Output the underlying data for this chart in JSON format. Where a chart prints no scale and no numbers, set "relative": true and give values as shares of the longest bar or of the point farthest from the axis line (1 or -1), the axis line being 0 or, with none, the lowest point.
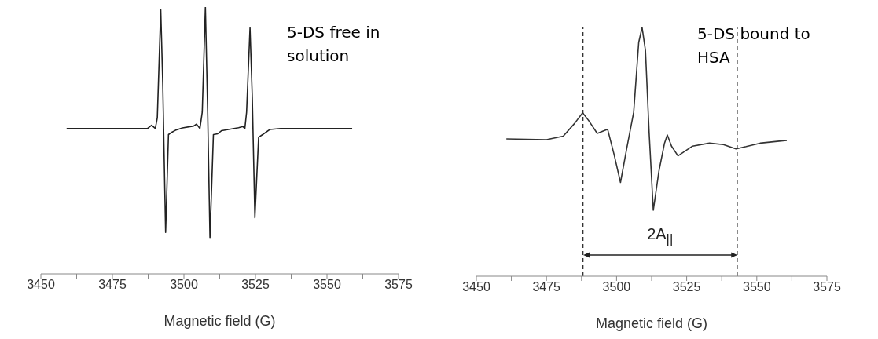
{
  "chart_data": [
    {
      "type": "line",
      "xlabel": "Magnetic field (G)",
      "relative": true,
      "xlim": [
        3450,
        3575
      ],
      "xticks": [
        3450,
        {
          "value": 3462.5,
          "label": null
        },
        3475,
        {
          "value": 3487.5,
          "label": null
        },
        3500,
        {
          "value": 3512.5,
          "label": null
        },
        3525,
        {
          "value": 3537.5,
          "label": null
        },
        3550,
        {
          "value": 3562.5,
          "label": null
        },
        3575
      ],
      "grid": false,
      "legend": false,
      "marker": "none",
      "line_style": "solid",
      "annotations": [
        "5-DS free in solution"
      ],
      "series": [
        {
          "color": "#222222",
          "x": [
            3459,
            3487.3,
            3488.7,
            3490,
            3490.7,
            3491.9,
            3492.6,
            3493.6,
            3494.6,
            3495.8,
            3497,
            3499.5,
            3503.4,
            3504.4,
            3505.6,
            3506.4,
            3507.5,
            3508.3,
            3509.1,
            3510.3,
            3511.8,
            3513.2,
            3519.1,
            3520.6,
            3521.3,
            3521.9,
            3523.1,
            3523.9,
            3524.8,
            3526.1,
            3527.5,
            3530,
            3533.8,
            3558.8
          ],
          "values": [
            0.545,
            0.545,
            0.557,
            0.545,
            0.585,
            0.99,
            0.712,
            0.155,
            0.522,
            0.531,
            0.538,
            0.547,
            0.554,
            0.561,
            0.545,
            0.606,
            1,
            0.606,
            0.136,
            0.522,
            0.525,
            0.537,
            0.548,
            0.552,
            0.545,
            0.606,
            0.922,
            0.659,
            0.21,
            0.512,
            0.522,
            0.541,
            0.545,
            0.545
          ]
        }
      ]
    },
    {
      "type": "line",
      "xlabel": "Magnetic field (G)",
      "relative": true,
      "xlim": [
        3450,
        3575
      ],
      "xticks": [
        3450,
        {
          "value": 3462.5,
          "label": null
        },
        3475,
        {
          "value": 3487.5,
          "label": null
        },
        3500,
        {
          "value": 3512.5,
          "label": null
        },
        3525,
        {
          "value": 3537.5,
          "label": null
        },
        3550,
        {
          "value": 3562.5,
          "label": null
        },
        3575
      ],
      "grid": false,
      "legend": false,
      "marker": "none",
      "line_style": "solid",
      "annotations": [
        "5-DS bound to HSA",
        "2A$_{||}$"
      ],
      "ref_lines": [
        {
          "axis": "x",
          "value": 3488,
          "label": null,
          "line_style": "dashed",
          "color": "#333333"
        },
        {
          "axis": "x",
          "value": 3543,
          "label": null,
          "line_style": "dashed",
          "color": "#333333"
        }
      ],
      "series": [
        {
          "color": "#333333",
          "x": [
            3460.7,
            3475,
            3481,
            3485,
            3487.9,
            3490.1,
            3493.1,
            3496.8,
            3499.1,
            3501.4,
            3503.6,
            3506.1,
            3507.9,
            3509.1,
            3510.3,
            3511.6,
            3513.1,
            3515.1,
            3517.1,
            3518.1,
            3519.6,
            3521.9,
            3527.1,
            3533.1,
            3538.1,
            3542.6,
            3546.2,
            3551.2,
            3560.7
          ],
          "values": [
            0.552,
            0.549,
            0.563,
            0.614,
            0.657,
            0.625,
            0.574,
            0.591,
            0.49,
            0.377,
            0.512,
            0.659,
            0.94,
            1,
            0.907,
            0.58,
            0.265,
            0.422,
            0.535,
            0.568,
            0.523,
            0.484,
            0.523,
            0.535,
            0.529,
            0.512,
            0.521,
            0.535,
            0.546
          ]
        }
      ]
    }
  ]
}
